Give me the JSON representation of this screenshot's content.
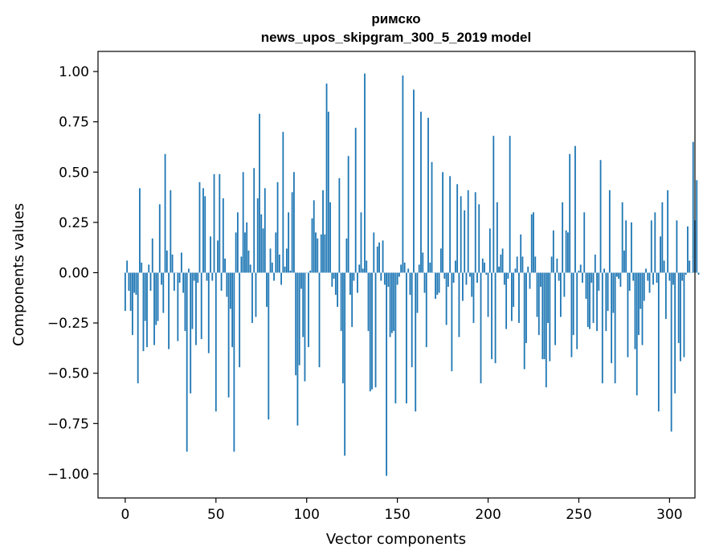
{
  "chart_data": {
    "type": "bar",
    "title_line1": "римско",
    "title_line2": "news_upos_skipgram_300_5_2019 model",
    "xlabel": "Vector components",
    "ylabel": "Components values",
    "xlim": [
      -15,
      314
    ],
    "ylim": [
      -1.12,
      1.1
    ],
    "x_ticks": [
      0,
      50,
      100,
      150,
      200,
      250,
      300
    ],
    "y_ticks": [
      -1.0,
      -0.75,
      -0.5,
      -0.25,
      0.0,
      0.25,
      0.5,
      0.75,
      1.0
    ],
    "y_tick_labels": [
      "−1.00",
      "−0.75",
      "−0.50",
      "−0.25",
      "0.00",
      "0.25",
      "0.50",
      "0.75",
      "1.00"
    ],
    "bar_color": "#1f77b4",
    "values": [
      -0.19,
      0.06,
      -0.09,
      -0.19,
      -0.31,
      -0.1,
      -0.11,
      -0.55,
      0.42,
      0.05,
      -0.39,
      -0.24,
      -0.37,
      0.04,
      -0.09,
      0.17,
      -0.36,
      -0.26,
      -0.24,
      0.34,
      -0.06,
      -0.2,
      0.59,
      0.11,
      -0.38,
      0.41,
      0.09,
      -0.09,
      0.0,
      -0.34,
      -0.05,
      0.1,
      -0.1,
      -0.29,
      -0.89,
      0.02,
      -0.6,
      -0.28,
      -0.04,
      -0.36,
      -0.05,
      0.45,
      -0.33,
      0.42,
      0.38,
      -0.04,
      -0.4,
      0.18,
      -0.04,
      0.49,
      -0.69,
      0.16,
      0.49,
      -0.09,
      0.37,
      0.07,
      -0.12,
      -0.62,
      -0.18,
      -0.37,
      -0.89,
      0.2,
      0.3,
      -0.47,
      0.08,
      0.5,
      0.2,
      0.25,
      0.11,
      0.04,
      -0.25,
      0.52,
      -0.22,
      0.37,
      0.79,
      0.29,
      0.22,
      0.42,
      -0.17,
      -0.73,
      0.12,
      0.05,
      -0.04,
      0.2,
      0.45,
      0.09,
      -0.06,
      0.7,
      0.03,
      0.12,
      0.3,
      0.01,
      0.4,
      0.5,
      -0.51,
      -0.76,
      -0.46,
      -0.08,
      -0.32,
      -0.54,
      0.0,
      -0.37,
      0.01,
      0.27,
      0.36,
      0.2,
      0.17,
      -0.47,
      0.19,
      0.41,
      0.19,
      0.94,
      0.8,
      0.35,
      -0.07,
      -0.03,
      -0.11,
      -0.17,
      0.47,
      -0.29,
      -0.55,
      -0.91,
      0.17,
      0.58,
      -0.11,
      -0.27,
      -0.04,
      0.72,
      -0.1,
      0.04,
      0.3,
      0.02,
      0.99,
      0.06,
      -0.29,
      -0.59,
      -0.58,
      0.2,
      -0.57,
      0.13,
      0.15,
      -0.04,
      0.16,
      -0.06,
      -1.01,
      -0.07,
      -0.32,
      -0.3,
      -0.29,
      -0.65,
      -0.06,
      -0.02,
      0.04,
      0.98,
      0.05,
      -0.65,
      0.02,
      -0.11,
      -0.47,
      0.91,
      -0.69,
      -0.2,
      0.04,
      0.8,
      0.1,
      -0.1,
      -0.37,
      0.77,
      0.05,
      0.55,
      0.0,
      -0.13,
      -0.11,
      -0.1,
      0.12,
      0.5,
      -0.03,
      -0.26,
      -0.07,
      0.48,
      -0.49,
      -0.05,
      0.06,
      0.44,
      -0.32,
      0.38,
      -0.14,
      0.31,
      -0.06,
      0.41,
      -0.02,
      -0.12,
      -0.25,
      0.4,
      -0.05,
      0.34,
      -0.55,
      0.07,
      0.05,
      -0.01,
      -0.22,
      0.22,
      -0.43,
      0.68,
      -0.45,
      0.35,
      0.03,
      0.09,
      0.12,
      -0.06,
      -0.28,
      -0.03,
      0.68,
      -0.24,
      -0.17,
      0.02,
      0.08,
      -0.25,
      0.19,
      0.08,
      -0.48,
      -0.35,
      0.03,
      -0.08,
      0.29,
      0.3,
      0.08,
      -0.22,
      -0.31,
      -0.07,
      -0.43,
      -0.43,
      -0.57,
      -0.25,
      -0.44,
      0.08,
      0.21,
      -0.36,
      0.07,
      -0.04,
      -0.22,
      0.35,
      -0.12,
      0.21,
      0.2,
      0.59,
      -0.42,
      -0.31,
      0.63,
      -0.38,
      0.01,
      0.04,
      -0.05,
      0.3,
      -0.13,
      -0.27,
      -0.28,
      -0.05,
      -0.25,
      0.09,
      -0.29,
      -0.09,
      0.56,
      -0.55,
      0.02,
      -0.29,
      -0.19,
      0.41,
      -0.45,
      -0.2,
      -0.55,
      -0.02,
      -0.03,
      -0.07,
      0.35,
      0.11,
      0.26,
      -0.42,
      -0.09,
      0.25,
      -0.04,
      -0.38,
      -0.61,
      -0.31,
      -0.18,
      -0.36,
      -0.14,
      0.02,
      -0.04,
      -0.1,
      0.26,
      -0.06,
      0.3,
      -0.05,
      -0.69,
      0.18,
      0.35,
      0.06,
      -0.23,
      0.41,
      -0.04,
      -0.79,
      -0.06,
      -0.6,
      0.26,
      -0.35,
      -0.44,
      -0.04,
      -0.42,
      -0.01,
      0.23,
      0.06,
      0.0,
      0.65,
      0.26,
      0.46,
      -0.01
    ]
  }
}
